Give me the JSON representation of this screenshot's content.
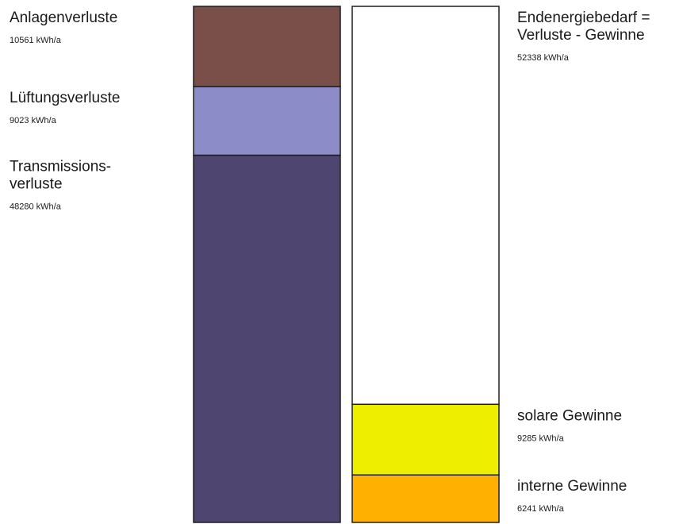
{
  "chart_data": {
    "type": "bar",
    "unit": "kWh/a",
    "series": [
      {
        "segments": [
          {
            "label": "Anlagenverluste",
            "value": 10561,
            "value_text": "10561 kWh/a",
            "color": "#7a4f4a"
          },
          {
            "label": "Lüftungsverluste",
            "value": 9023,
            "value_text": "9023 kWh/a",
            "color": "#8c8cc8"
          },
          {
            "label_lines": [
              "Transmissions-",
              "verluste"
            ],
            "value": 48280,
            "value_text": "48280 kWh/a",
            "color": "#4e4670"
          }
        ]
      },
      {
        "segments": [
          {
            "label_lines": [
              "Endenergiebedarf =",
              "Verluste - Gewinne"
            ],
            "value": 52338,
            "value_text": "52338 kWh/a",
            "color": "#ffffff"
          },
          {
            "label": "solare Gewinne",
            "value": 9285,
            "value_text": "9285 kWh/a",
            "color": "#eeee00"
          },
          {
            "label": "interne Gewinne",
            "value": 6241,
            "value_text": "6241 kWh/a",
            "color": "#ffb000"
          }
        ]
      }
    ]
  }
}
